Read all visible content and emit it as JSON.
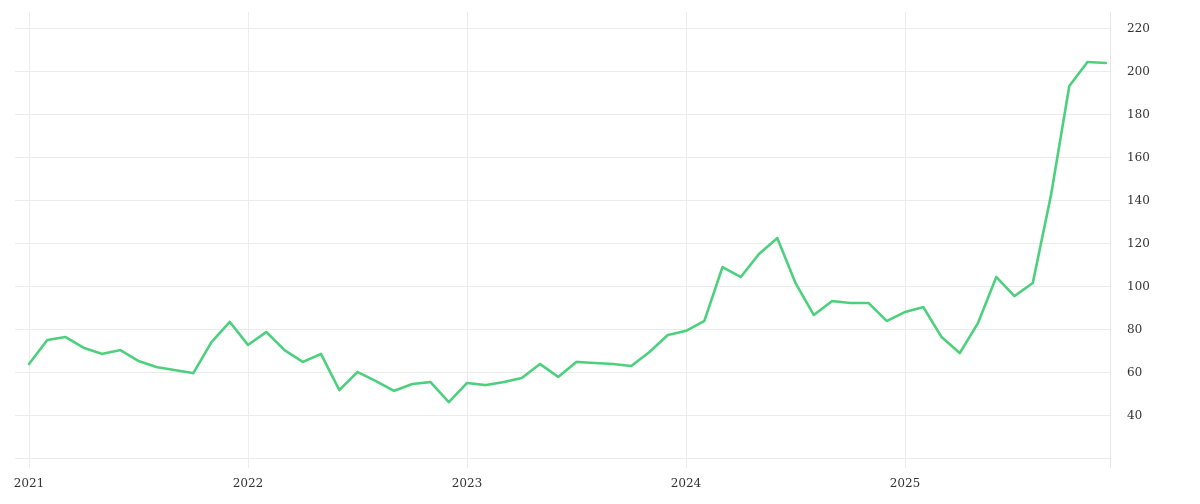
{
  "chart_data": {
    "type": "line",
    "title": "",
    "xlabel": "",
    "ylabel": "",
    "ylim": [
      20,
      220
    ],
    "y_axis_position": "right",
    "y_ticks": [
      40,
      60,
      80,
      100,
      120,
      140,
      160,
      180,
      200,
      220
    ],
    "x_ticks": [
      "2021",
      "2022",
      "2023",
      "2024",
      "2025"
    ],
    "grid": true,
    "legend": null,
    "line_color": "#4cd07d",
    "x": [
      "2021-01",
      "2021-02",
      "2021-03",
      "2021-04",
      "2021-05",
      "2021-06",
      "2021-07",
      "2021-08",
      "2021-09",
      "2021-10",
      "2021-11",
      "2021-12",
      "2022-01",
      "2022-02",
      "2022-03",
      "2022-04",
      "2022-05",
      "2022-06",
      "2022-07",
      "2022-08",
      "2022-09",
      "2022-10",
      "2022-11",
      "2022-12",
      "2023-01",
      "2023-02",
      "2023-03",
      "2023-04",
      "2023-05",
      "2023-06",
      "2023-07",
      "2023-08",
      "2023-09",
      "2023-10",
      "2023-11",
      "2023-12",
      "2024-01",
      "2024-02",
      "2024-03",
      "2024-04",
      "2024-05",
      "2024-06",
      "2024-07",
      "2024-08",
      "2024-09",
      "2024-10",
      "2024-11",
      "2024-12",
      "2025-01",
      "2025-02",
      "2025-03",
      "2025-04",
      "2025-05",
      "2025-06",
      "2025-07",
      "2025-08",
      "2025-09",
      "2025-10",
      "2025-11",
      "2025-12"
    ],
    "series": [
      {
        "name": "value",
        "values": [
          63.7,
          74.9,
          76.3,
          71.2,
          68.4,
          70.2,
          65.1,
          62.3,
          60.9,
          59.5,
          73.9,
          83.3,
          72.6,
          78.6,
          70.2,
          64.7,
          68.4,
          51.6,
          60.0,
          55.8,
          51.2,
          54.4,
          55.3,
          46.0,
          54.9,
          53.9,
          55.3,
          57.2,
          63.7,
          57.7,
          64.7,
          64.2,
          63.7,
          62.8,
          69.3,
          77.2,
          79.1,
          83.7,
          108.8,
          104.2,
          114.9,
          122.3,
          101.4,
          86.5,
          93.0,
          92.1,
          92.1,
          83.7,
          87.9,
          90.2,
          76.3,
          68.8,
          82.8,
          104.2,
          95.3,
          101.4,
          142.3,
          193.0,
          204.2,
          203.7
        ]
      }
    ]
  },
  "colors": {
    "line": "#4cd07d",
    "grid": "#ececec",
    "axis": "#e6e6e6",
    "text": "#333333",
    "background": "#ffffff"
  }
}
